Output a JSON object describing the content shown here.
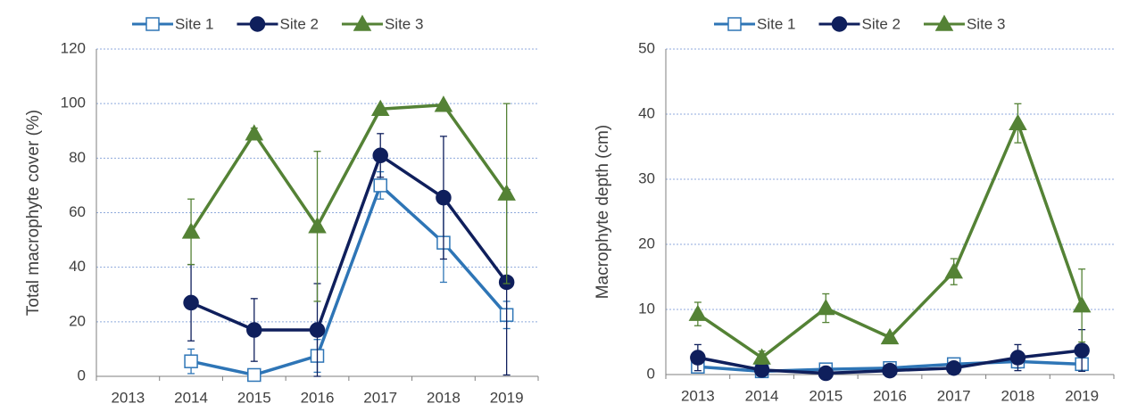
{
  "chart_data": [
    {
      "type": "line",
      "y_label": "Total macrophyte cover (%)",
      "categories": [
        "2013",
        "2014",
        "2015",
        "2016",
        "2017",
        "2018",
        "2019"
      ],
      "ylim": [
        0,
        120
      ],
      "yticks": [
        0,
        20,
        40,
        60,
        80,
        100,
        120
      ],
      "grid": true,
      "legend": "top",
      "series": [
        {
          "name": "Site 1",
          "color": "#2e75b6",
          "marker": "square",
          "values": [
            null,
            5.5,
            0.5,
            7.5,
            70,
            49,
            22.5
          ],
          "errors": [
            null,
            4.5,
            0.5,
            6,
            5,
            14.5,
            5
          ]
        },
        {
          "name": "Site 2",
          "color": "#0f1f5c",
          "marker": "circle",
          "values": [
            null,
            27,
            17,
            17,
            81,
            65.5,
            34.5
          ],
          "errors": [
            null,
            14,
            11.5,
            17,
            8,
            22.5,
            34
          ]
        },
        {
          "name": "Site 3",
          "color": "#548235",
          "marker": "triangle",
          "values": [
            null,
            53,
            89,
            55,
            98,
            99.5,
            67
          ],
          "errors": [
            null,
            12,
            2,
            27.5,
            1,
            1,
            33
          ]
        }
      ]
    },
    {
      "type": "line",
      "y_label": "Macrophyte depth (cm)",
      "categories": [
        "2013",
        "2014",
        "2015",
        "2016",
        "2017",
        "2018",
        "2019"
      ],
      "ylim": [
        0,
        50
      ],
      "yticks": [
        0,
        10,
        20,
        30,
        40,
        50
      ],
      "grid": true,
      "legend": "top",
      "series": [
        {
          "name": "Site 1",
          "color": "#2e75b6",
          "marker": "square",
          "values": [
            1.2,
            0.5,
            0.8,
            1.0,
            1.6,
            2.0,
            1.6
          ],
          "errors": [
            0.5,
            0.3,
            0.3,
            0.3,
            0.3,
            1,
            0.8
          ]
        },
        {
          "name": "Site 2",
          "color": "#0f1f5c",
          "marker": "circle",
          "values": [
            2.6,
            0.7,
            0.2,
            0.6,
            1.0,
            2.6,
            3.7
          ],
          "errors": [
            2.0,
            0.4,
            0.3,
            0.3,
            0.5,
            2.0,
            3.2
          ]
        },
        {
          "name": "Site 3",
          "color": "#548235",
          "marker": "triangle",
          "values": [
            9.3,
            2.6,
            10.2,
            5.7,
            15.8,
            38.6,
            10.6
          ],
          "errors": [
            1.8,
            1,
            2.2,
            0.5,
            2,
            3,
            5.6
          ]
        }
      ]
    }
  ]
}
